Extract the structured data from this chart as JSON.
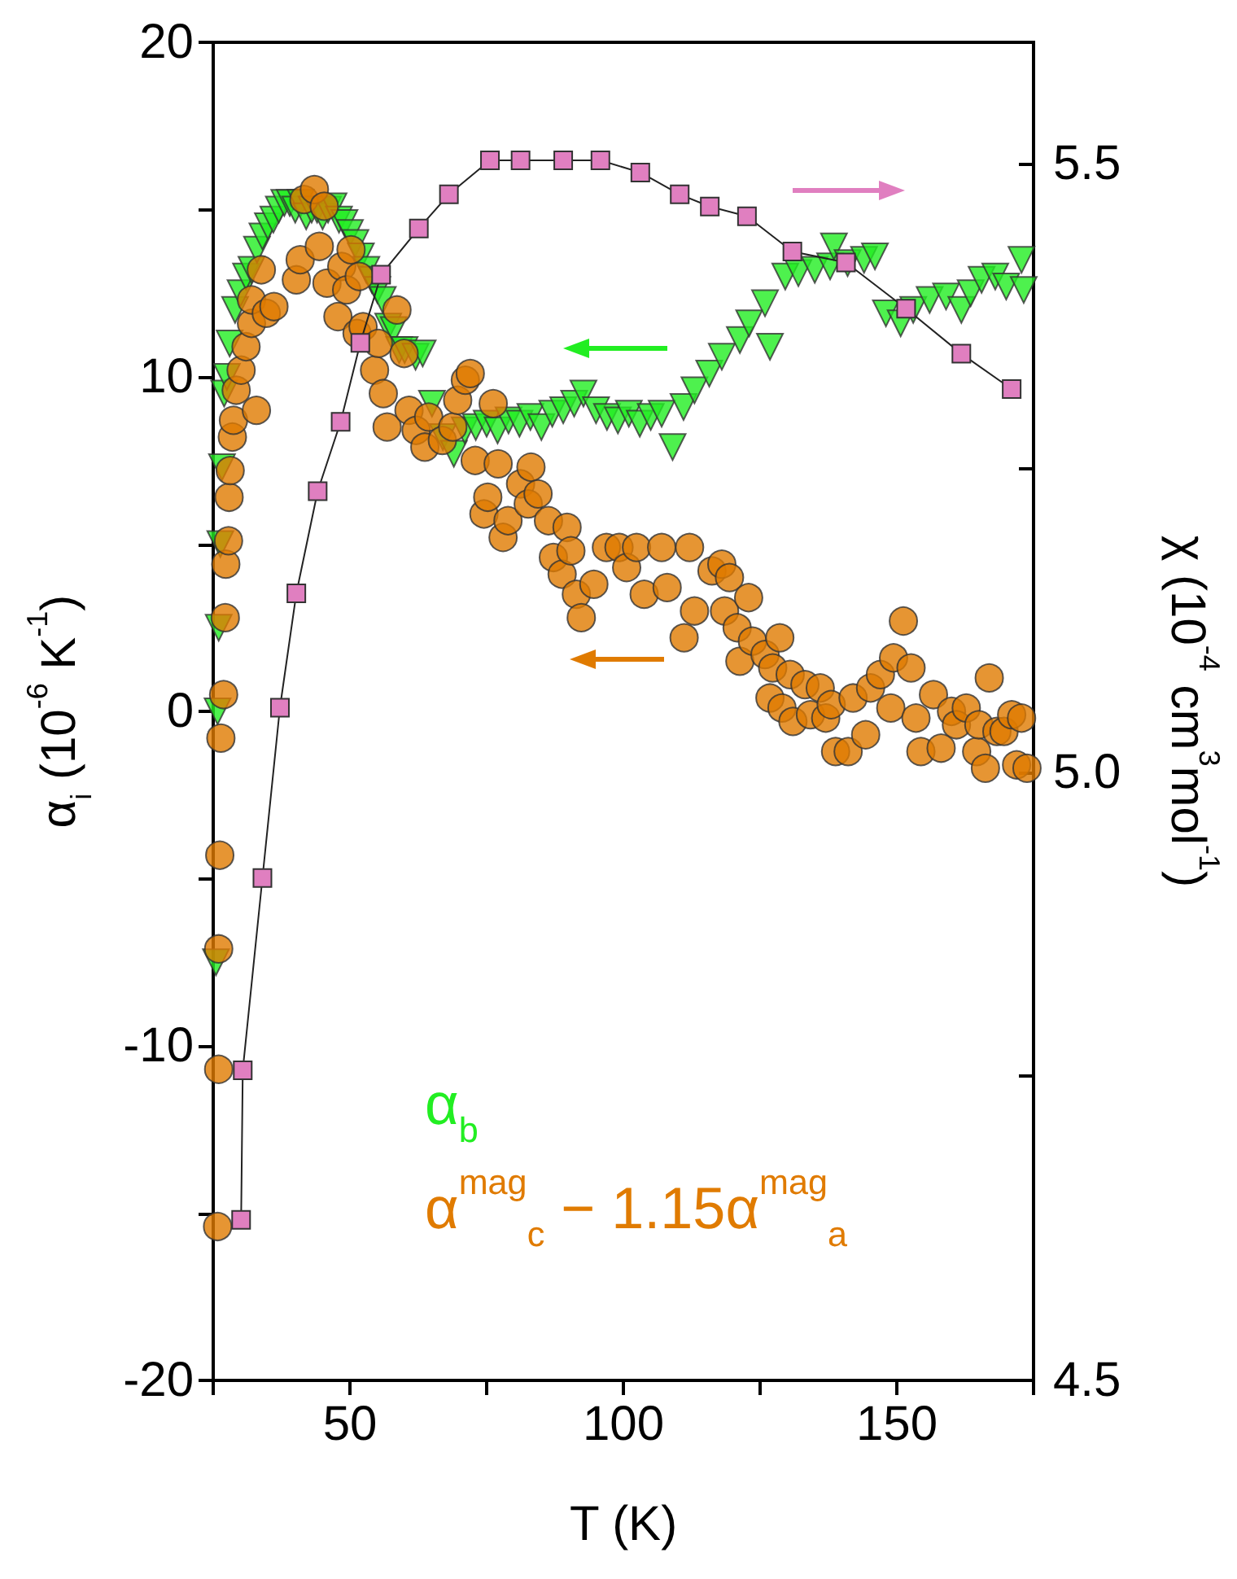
{
  "chart_data": {
    "type": "scatter",
    "xlabel": "T (K)",
    "ylabel": "α$_{i}$ (10$^{-6}$ K$^{-1}$)",
    "y2label": "χ (10$^{-4}$ cm$^{3}$mol$^{-1}$)",
    "xlim": [
      25,
      175
    ],
    "xticks": [
      {
        "value": 25,
        "label": null
      },
      50,
      {
        "value": 75,
        "label": null
      },
      100,
      {
        "value": 125,
        "label": null
      },
      150,
      {
        "value": 175,
        "label": null
      }
    ],
    "ylim": [
      -20,
      20
    ],
    "yticks": [
      -20,
      {
        "value": -15,
        "label": null
      },
      -10,
      {
        "value": -5,
        "label": null
      },
      0,
      {
        "value": 5,
        "label": null
      },
      10,
      {
        "value": 15,
        "label": null
      },
      20
    ],
    "y2lim": [
      4.5,
      5.6
    ],
    "y2ticks": [
      4.5,
      {
        "value": 4.75,
        "label": null
      },
      {
        "value": 5,
        "label": "5.0"
      },
      {
        "value": 5.25,
        "label": null
      },
      5.5
    ],
    "legend": "bottom left",
    "grid": false,
    "series": [
      {
        "name": "α$_{b}$",
        "marker": "triangle",
        "color": "#22ee22",
        "x": [
          25.5,
          25.8,
          26,
          26.3,
          26.6,
          27,
          27.5,
          28,
          29,
          30,
          31,
          32,
          33,
          34,
          35,
          36,
          37,
          38,
          39,
          40,
          41,
          42,
          43,
          44,
          45,
          46,
          47,
          48,
          49,
          50,
          51,
          52,
          53,
          54,
          55,
          56,
          57,
          58,
          59,
          60,
          62,
          63.3,
          65,
          67,
          69,
          71,
          73,
          75,
          77,
          79,
          81,
          83,
          85,
          87,
          89,
          91,
          92.7,
          95,
          97,
          99,
          101,
          103,
          105,
          107,
          109,
          111,
          113,
          115.7,
          118,
          121.3,
          123,
          125.9,
          126.8,
          129.6,
          132,
          135,
          137.8,
          138.5,
          141,
          144,
          146,
          148,
          150.7,
          153,
          156,
          159,
          161.8,
          163.5,
          165.5,
          168,
          170,
          172.8,
          173.2
        ],
        "values": [
          -7.5,
          0,
          2.5,
          5,
          7.3,
          9.5,
          10,
          11,
          12,
          12.5,
          13,
          13.2,
          13.8,
          14.2,
          14.5,
          14.7,
          15,
          15.2,
          15.2,
          15,
          15.2,
          14.8,
          15,
          15,
          14.8,
          15,
          15.1,
          14.7,
          14.6,
          14.3,
          14,
          13.6,
          13.2,
          12.9,
          12.6,
          12.3,
          11.5,
          11.4,
          10.8,
          10.8,
          10.6,
          10.7,
          9.2,
          8.2,
          7.7,
          8.4,
          8.5,
          8.6,
          8.4,
          8.7,
          8.6,
          8.8,
          8.5,
          8.9,
          9,
          9.2,
          9.5,
          9.0,
          8.8,
          8.7,
          8.9,
          8.6,
          8.8,
          8.9,
          7.9,
          9.1,
          9.6,
          10.1,
          10.6,
          11.1,
          11.6,
          12.2,
          10.9,
          13,
          13.1,
          13.2,
          13.3,
          13.9,
          13.4,
          13.5,
          13.6,
          11.9,
          11.6,
          12.0,
          12.3,
          12.4,
          12.0,
          12.5,
          12.9,
          13.0,
          12.7,
          13.5,
          12.6
        ]
      },
      {
        "name": "α$^{mag}$$_{c}$ − 1.15α$^{mag}$$_{a}$",
        "marker": "circle",
        "color": "#e07b00",
        "x": [
          25.8,
          26,
          26,
          26.2,
          26.4,
          26.9,
          27.2,
          27.3,
          27.8,
          27.9,
          28.1,
          28.5,
          28.7,
          29.2,
          30.1,
          31,
          32,
          32,
          32.9,
          33.8,
          34.7,
          36.1,
          40.2,
          40.9,
          41.6,
          43.5,
          44.4,
          45.3,
          45.8,
          47.8,
          48.5,
          49.4,
          50.2,
          51.3,
          51.7,
          52.4,
          54.5,
          55.2,
          56.1,
          56.8,
          58.6,
          59.9,
          60.8,
          62.1,
          63.7,
          64.4,
          66.9,
          68.8,
          69.7,
          71.1,
          72,
          72.9,
          74.5,
          75.2,
          76.2,
          77.1,
          78,
          78.9,
          81.2,
          82.6,
          83.1,
          84.4,
          86.3,
          87.2,
          88.8,
          89.7,
          90.4,
          91.4,
          92.3,
          94.6,
          96.9,
          99.2,
          100.6,
          102.4,
          103.8,
          107,
          108,
          111.1,
          112.1,
          113,
          116.2,
          118,
          118.5,
          119.4,
          120.8,
          121.3,
          122.9,
          123.6,
          125.9,
          126.8,
          127.3,
          128.6,
          129,
          130.5,
          131,
          133.2,
          134.2,
          136,
          137,
          138,
          138.8,
          141.1,
          142,
          144.3,
          145.2,
          147,
          148.9,
          149.4,
          151.2,
          152.6,
          153.5,
          154.4,
          156.7,
          158.1,
          160,
          160.9,
          162.7,
          164.6,
          165,
          166.2,
          166.9,
          168.3,
          169.6,
          171,
          171.9,
          172.8,
          173.8
        ],
        "values": [
          -15.4,
          -10.7,
          -7.1,
          -4.3,
          -0.8,
          0.5,
          2.8,
          4.4,
          5.1,
          6.4,
          7.2,
          8.2,
          8.7,
          9.6,
          10.2,
          10.9,
          11.6,
          12.3,
          9.0,
          13.2,
          11.9,
          12.1,
          12.9,
          13.5,
          15.3,
          15.6,
          13.9,
          15.1,
          12.8,
          11.8,
          13.3,
          12.6,
          13.8,
          11.3,
          13.0,
          11.5,
          10.2,
          11.0,
          9.5,
          8.5,
          12.0,
          10.7,
          9.0,
          8.4,
          7.9,
          8.8,
          8.1,
          8.5,
          9.3,
          9.9,
          10.1,
          7.5,
          5.9,
          6.4,
          9.2,
          7.4,
          5.2,
          5.7,
          6.8,
          6.2,
          7.3,
          6.5,
          5.7,
          4.6,
          4.1,
          5.5,
          4.8,
          3.5,
          2.8,
          3.8,
          4.9,
          4.9,
          4.3,
          4.9,
          3.5,
          4.9,
          3.7,
          2.2,
          4.9,
          3.0,
          4.2,
          4.4,
          3.0,
          4.0,
          2.5,
          1.5,
          3.4,
          2.1,
          1.7,
          0.4,
          1.3,
          2.2,
          0.1,
          1.1,
          -0.3,
          0.8,
          -0.1,
          0.7,
          -0.2,
          0.2,
          -1.2,
          -1.2,
          0.4,
          -0.7,
          0.7,
          1.1,
          0.1,
          1.6,
          2.7,
          1.3,
          -0.2,
          -1.2,
          0.5,
          -1.1,
          0.0,
          -0.4,
          0.1,
          -1.2,
          -0.4,
          -1.7,
          1.0,
          -0.6,
          -0.6,
          -0.1,
          -1.6,
          -0.2,
          -1.7
        ]
      },
      {
        "type": "line",
        "marker": "square",
        "line_style": "solid",
        "axis": "y2",
        "color": "#e07fc0",
        "x": [
          30.1,
          30.4,
          34.0,
          37.2,
          40.2,
          44.1,
          48.3,
          51.9,
          55.7,
          62.6,
          68.1,
          75.6,
          81.2,
          89.0,
          95.8,
          103.1,
          110.3,
          115.8,
          122.6,
          130.9,
          140.7,
          151.7,
          161.8,
          171.0
        ],
        "values": [
          4.632,
          4.755,
          4.913,
          5.053,
          5.147,
          5.231,
          5.288,
          5.353,
          5.409,
          5.447,
          5.475,
          5.503,
          5.503,
          5.503,
          5.503,
          5.493,
          5.475,
          5.465,
          5.457,
          5.428,
          5.419,
          5.381,
          5.344,
          5.315
        ]
      }
    ]
  }
}
